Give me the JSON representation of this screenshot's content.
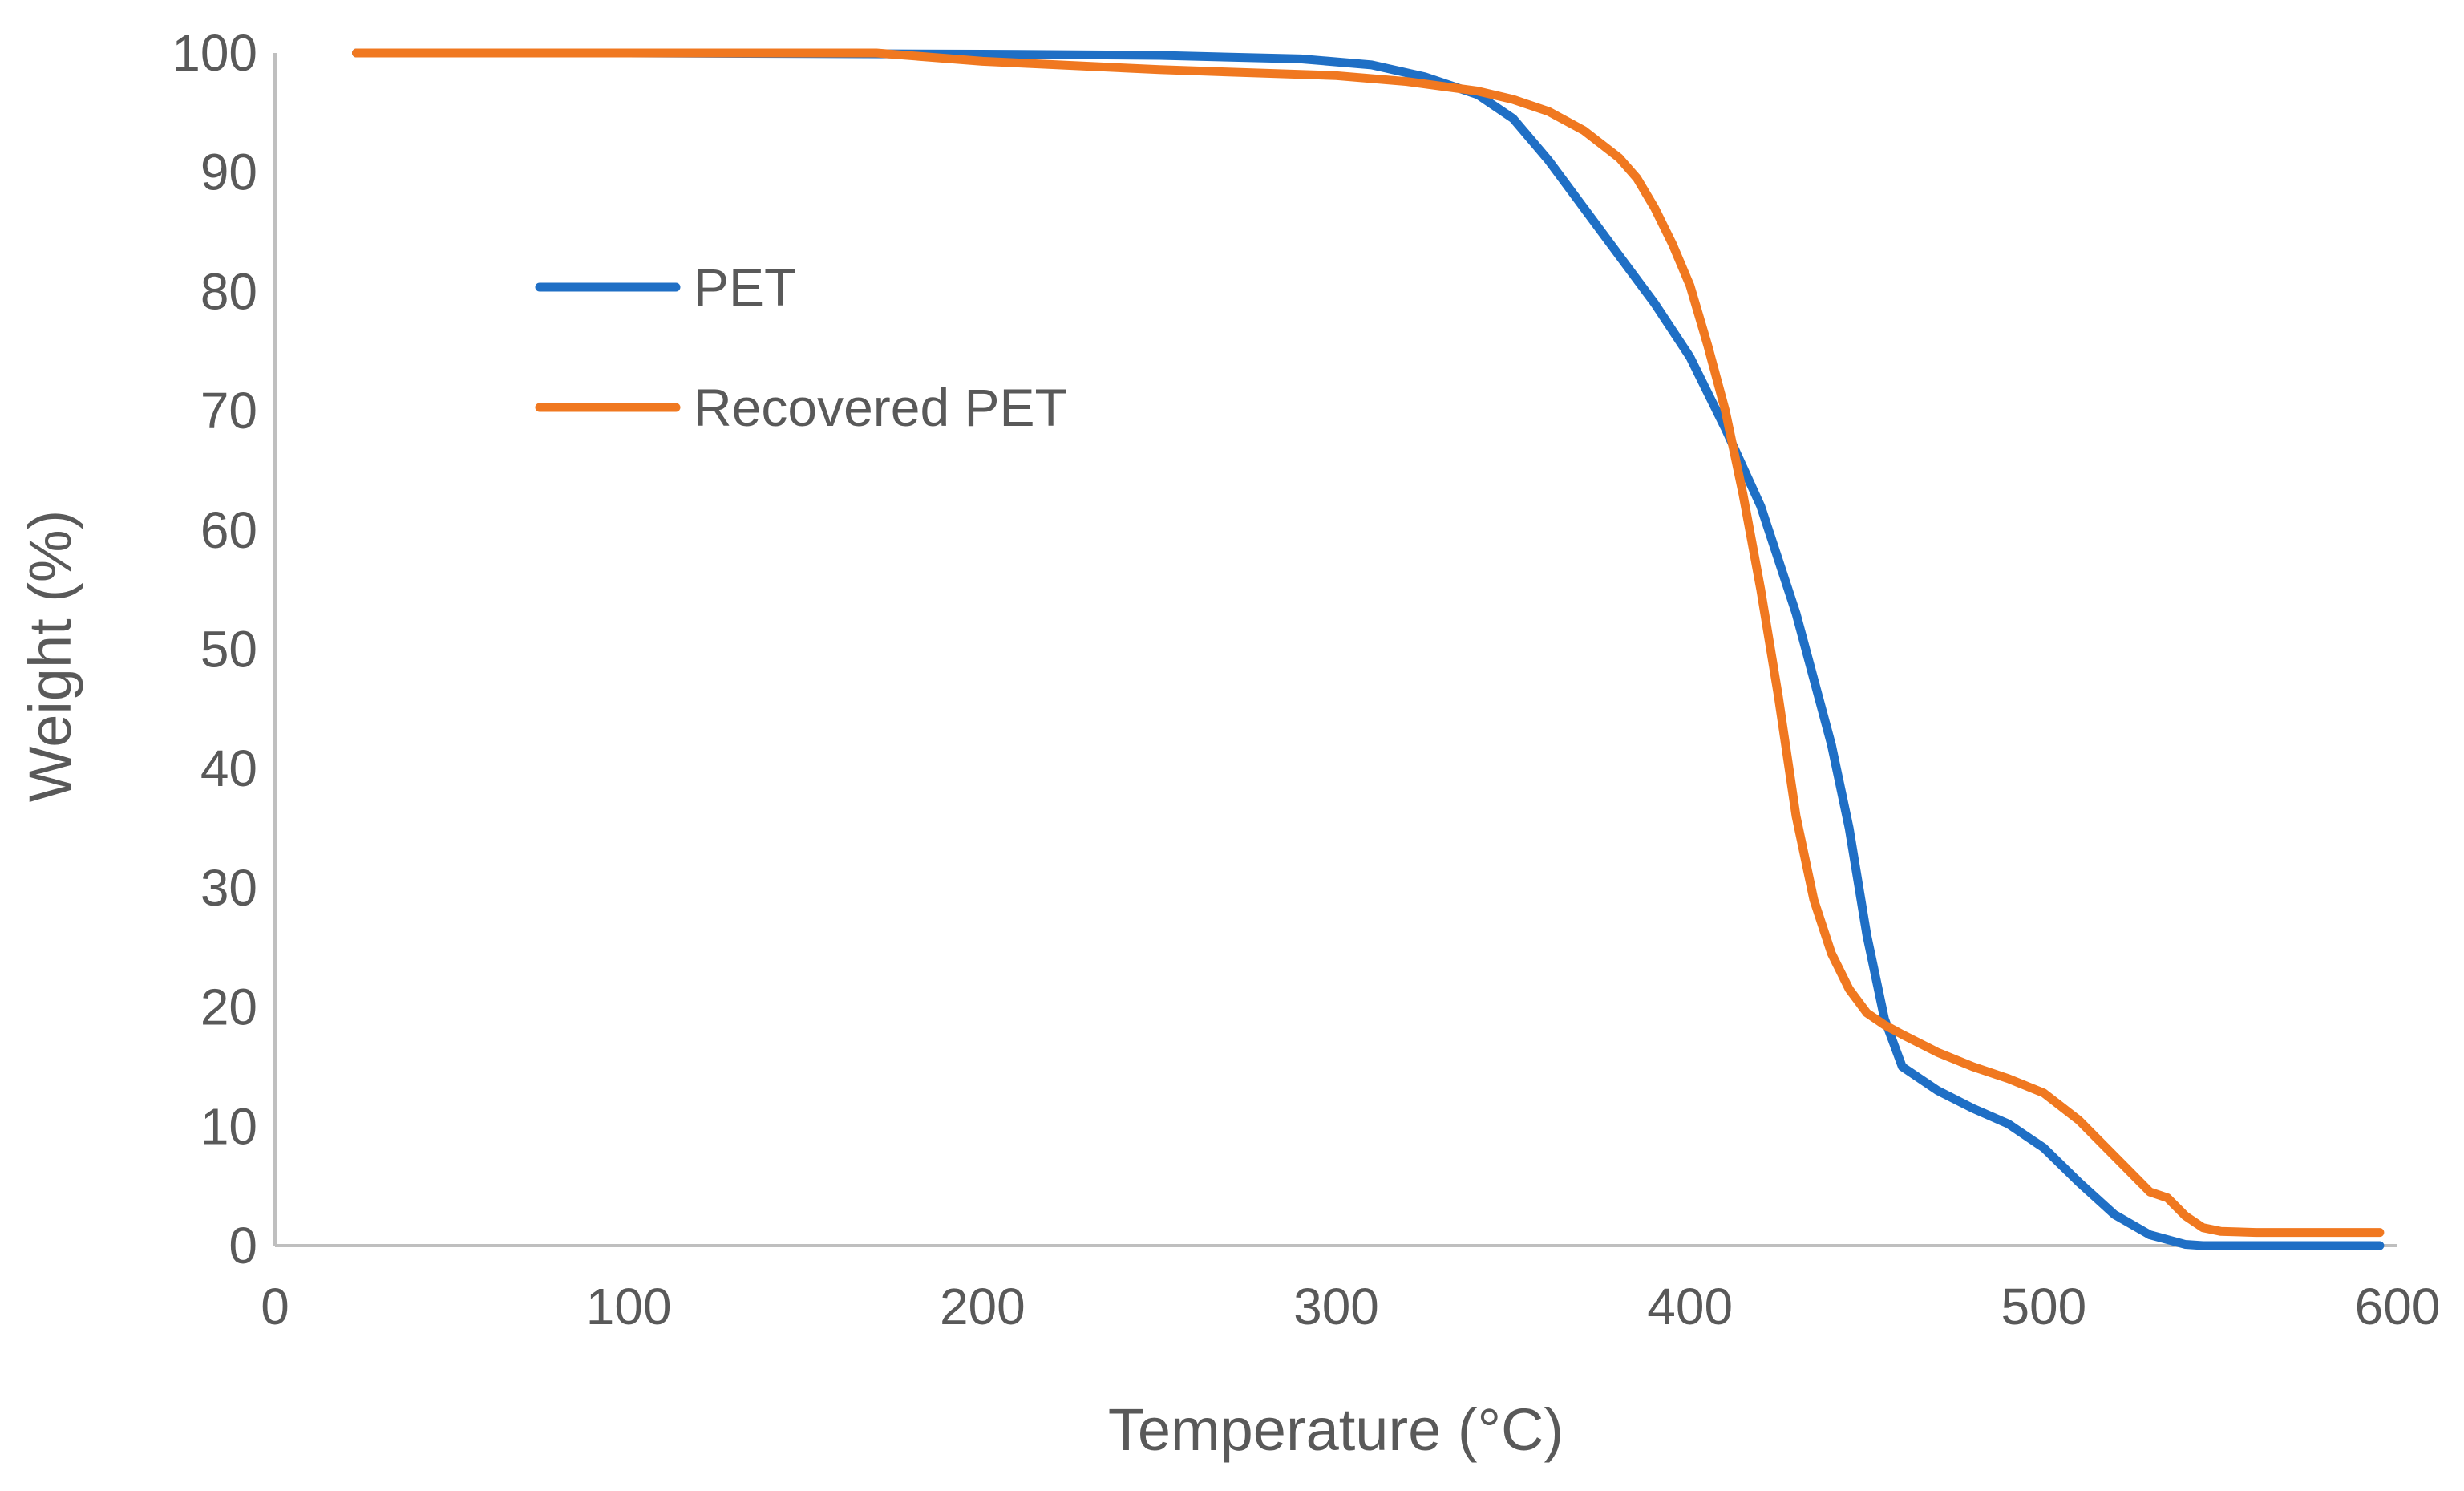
{
  "chart_data": {
    "type": "line",
    "title": "",
    "xlabel": "Temperature (°C)",
    "ylabel": "Weight (%)",
    "xlim": [
      0,
      600
    ],
    "ylim": [
      0,
      100
    ],
    "xticks": [
      "0",
      "100",
      "200",
      "300",
      "400",
      "500",
      "600"
    ],
    "yticks": [
      "0",
      "10",
      "20",
      "30",
      "40",
      "50",
      "60",
      "70",
      "80",
      "90",
      "100"
    ],
    "grid": false,
    "legend_position": "upper-left",
    "series": [
      {
        "name": "PET",
        "color": "#1f6fc5",
        "x": [
          23,
          100,
          200,
          250,
          290,
          310,
          325,
          340,
          350,
          360,
          370,
          380,
          390,
          400,
          410,
          420,
          430,
          440,
          445,
          450,
          455,
          460,
          470,
          480,
          490,
          500,
          510,
          520,
          530,
          540,
          545,
          550,
          560,
          570,
          580,
          590,
          595
        ],
        "y": [
          100,
          100,
          99.9,
          99.8,
          99.5,
          99.0,
          98.0,
          96.5,
          94.5,
          91,
          87,
          83,
          79,
          74.5,
          68.5,
          62,
          53,
          42,
          35,
          26,
          19,
          15,
          13,
          11.5,
          10.2,
          8.2,
          5.3,
          2.6,
          0.9,
          0.1,
          0,
          0,
          0,
          0,
          0,
          0,
          0
        ]
      },
      {
        "name": "Recovered PET",
        "color": "#f07820",
        "x": [
          23,
          100,
          170,
          200,
          250,
          300,
          320,
          340,
          350,
          360,
          370,
          380,
          385,
          390,
          395,
          400,
          405,
          410,
          415,
          420,
          425,
          430,
          435,
          440,
          445,
          450,
          455,
          460,
          470,
          480,
          490,
          500,
          510,
          520,
          530,
          535,
          540,
          545,
          550,
          560,
          570,
          580,
          595
        ],
        "y": [
          100,
          100,
          100,
          99.3,
          98.6,
          98.1,
          97.6,
          96.8,
          96.1,
          95.1,
          93.5,
          91.2,
          89.5,
          87,
          84,
          80.5,
          75.5,
          70,
          63,
          55,
          46,
          36,
          29,
          24.5,
          21.5,
          19.5,
          18.5,
          17.7,
          16.2,
          15,
          14,
          12.8,
          10.5,
          7.5,
          4.5,
          4,
          2.5,
          1.5,
          1.2,
          1.1,
          1.1,
          1.1,
          1.1
        ]
      }
    ]
  }
}
